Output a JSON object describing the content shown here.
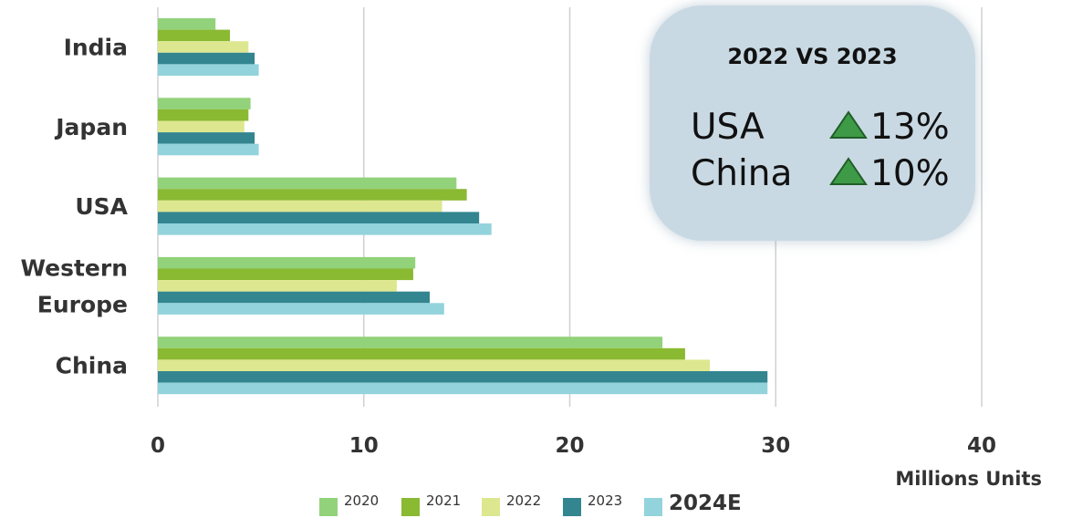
{
  "chart_data": {
    "type": "bar",
    "orientation": "horizontal",
    "categories": [
      "India",
      "Japan",
      "USA",
      "Western Europe",
      "China"
    ],
    "category_label_lines": [
      [
        "India"
      ],
      [
        "Japan"
      ],
      [
        "USA"
      ],
      [
        "Western",
        "Europe"
      ],
      [
        "China"
      ]
    ],
    "series": [
      {
        "name": "2020",
        "color": "#92d27a",
        "values": [
          2.8,
          4.5,
          14.5,
          12.5,
          24.5
        ]
      },
      {
        "name": "2021",
        "color": "#8ab932",
        "values": [
          3.5,
          4.4,
          15.0,
          12.4,
          25.6
        ]
      },
      {
        "name": "2022",
        "color": "#dde78f",
        "values": [
          4.4,
          4.2,
          13.8,
          11.6,
          26.8
        ]
      },
      {
        "name": "2023",
        "color": "#33858f",
        "values": [
          4.7,
          4.7,
          15.6,
          13.2,
          29.6
        ]
      },
      {
        "name": "2024E",
        "color": "#93d3dc",
        "values": [
          4.9,
          4.9,
          16.2,
          13.9,
          29.6
        ]
      }
    ],
    "xlim": [
      0,
      40
    ],
    "xticks": [
      0,
      10,
      20,
      30,
      40
    ],
    "xlabel": "Millions Units",
    "ylabel": "",
    "title": "",
    "grid": "vertical",
    "legend_position": "bottom"
  },
  "callout": {
    "title": "2022 VS 2023",
    "rows": [
      {
        "name": "USA",
        "change": "13%",
        "direction": "up"
      },
      {
        "name": "China",
        "change": "10%",
        "direction": "up"
      }
    ],
    "arrow_color": "#3e9a47",
    "background": "#c9d9e3"
  },
  "colors": {
    "grid": "#d0d0d0",
    "text": "#333333"
  }
}
